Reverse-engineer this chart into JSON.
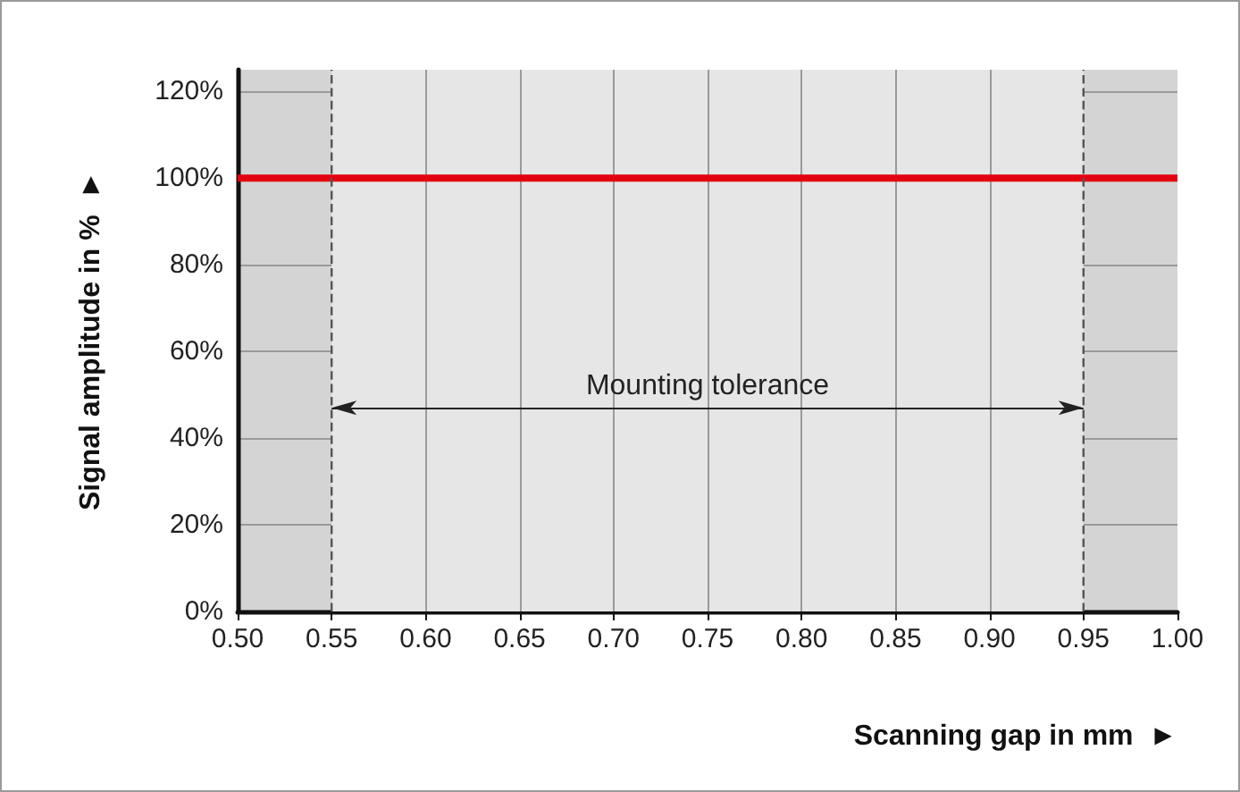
{
  "chart_data": {
    "type": "line",
    "xlabel": "Scanning gap in mm  ►",
    "ylabel": "Signal amplitude in %  ►",
    "x": [
      0.5,
      1.0
    ],
    "series": [
      {
        "color": "#e3000f",
        "values": [
          100,
          100
        ]
      }
    ],
    "xlim": [
      0.5,
      1.0
    ],
    "xticks": [
      {
        "value": 0.5,
        "label": "0.50"
      },
      {
        "value": 0.55,
        "label": "0.55"
      },
      {
        "value": 0.6,
        "label": "0.60"
      },
      {
        "value": 0.65,
        "label": "0.65"
      },
      {
        "value": 0.7,
        "label": "0.70"
      },
      {
        "value": 0.75,
        "label": "0.75"
      },
      {
        "value": 0.8,
        "label": "0.80"
      },
      {
        "value": 0.85,
        "label": "0.85"
      },
      {
        "value": 0.9,
        "label": "0.90"
      },
      {
        "value": 0.95,
        "label": "0.95"
      },
      {
        "value": 1.0,
        "label": "1.00"
      }
    ],
    "ylim": [
      0,
      125
    ],
    "yticks": [
      {
        "value": 0,
        "label": "0%"
      },
      {
        "value": 20,
        "label": "20%"
      },
      {
        "value": 40,
        "label": "40%"
      },
      {
        "value": 60,
        "label": "60%"
      },
      {
        "value": 80,
        "label": "80%"
      },
      {
        "value": 100,
        "label": "100%"
      },
      {
        "value": 120,
        "label": "120%"
      }
    ],
    "bands": [
      {
        "axis": "x",
        "from": 0.55,
        "to": 0.95,
        "label": "Mounting tolerance",
        "color": "#e6e6e6"
      }
    ],
    "grid": true,
    "marker": "none",
    "line_style": "solid"
  }
}
